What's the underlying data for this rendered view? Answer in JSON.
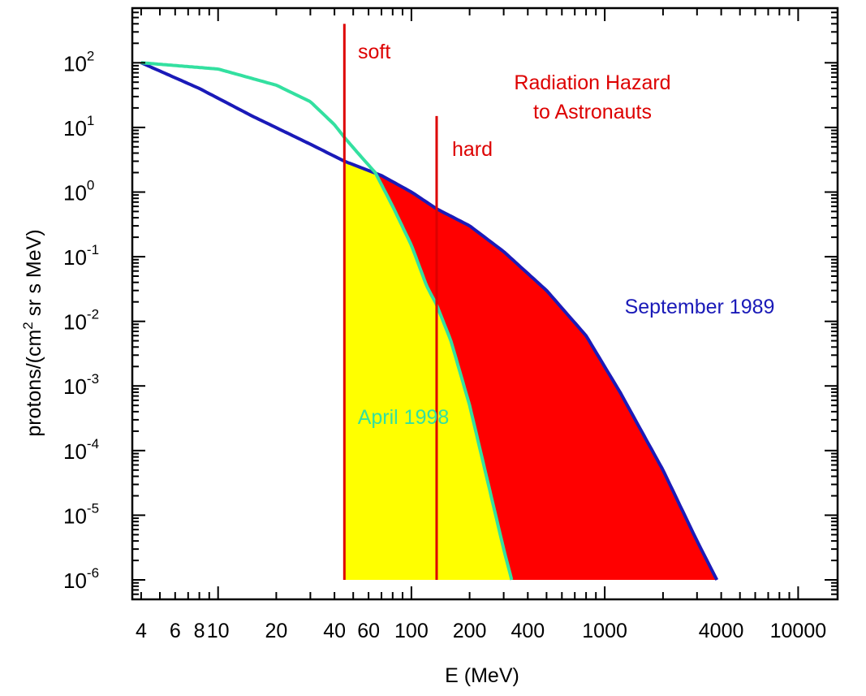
{
  "chart_data": {
    "type": "line",
    "title": "",
    "xlabel": "E (MeV)",
    "ylabel_parts": {
      "before": "protons/(cm",
      "sup": "2",
      "after": " sr s MeV)"
    },
    "x_scale": "log",
    "y_scale": "log",
    "xlim": [
      3.6,
      16000
    ],
    "ylim": [
      5e-07,
      700
    ],
    "x_ticklabels": [
      {
        "value": 4,
        "label": "4"
      },
      {
        "value": 6,
        "label": "6"
      },
      {
        "value": 8,
        "label": "8"
      },
      {
        "value": 10,
        "label": "10"
      },
      {
        "value": 20,
        "label": "20"
      },
      {
        "value": 40,
        "label": "40"
      },
      {
        "value": 60,
        "label": "60"
      },
      {
        "value": 100,
        "label": "100"
      },
      {
        "value": 200,
        "label": "200"
      },
      {
        "value": 400,
        "label": "400"
      },
      {
        "value": 1000,
        "label": "1000"
      },
      {
        "value": 4000,
        "label": "4000"
      },
      {
        "value": 10000,
        "label": "10000"
      }
    ],
    "y_ticklabels": [
      {
        "exponent": 2,
        "base": "10",
        "exp": "2"
      },
      {
        "exponent": 1,
        "base": "10",
        "exp": "1"
      },
      {
        "exponent": 0,
        "base": "10",
        "exp": "0"
      },
      {
        "exponent": -1,
        "base": "10",
        "exp": "-1"
      },
      {
        "exponent": -2,
        "base": "10",
        "exp": "-2"
      },
      {
        "exponent": -3,
        "base": "10",
        "exp": "-3"
      },
      {
        "exponent": -4,
        "base": "10",
        "exp": "-4"
      },
      {
        "exponent": -5,
        "base": "10",
        "exp": "-5"
      },
      {
        "exponent": -6,
        "base": "10",
        "exp": "-6"
      }
    ],
    "series": [
      {
        "name": "September 1989",
        "color": "#1a1ab8",
        "x": [
          4.0,
          8.0,
          15.0,
          30.0,
          45.0,
          70.0,
          100.0,
          135.0,
          200.0,
          300.0,
          500.0,
          800.0,
          1200.0,
          2000.0,
          3000.0,
          3800.0
        ],
        "y": [
          100,
          40,
          15,
          5.5,
          3.0,
          1.8,
          1.0,
          0.55,
          0.3,
          0.12,
          0.03,
          0.006,
          0.0008,
          5e-05,
          4e-06,
          1e-06
        ]
      },
      {
        "name": "April 1998",
        "color": "#33e0a0",
        "x": [
          4.0,
          10.0,
          20.0,
          30.0,
          40.0,
          45.0,
          55.0,
          65.0,
          80.0,
          100.0,
          120.0,
          135.0,
          160.0,
          200.0,
          250.0,
          300.0,
          330.0
        ],
        "y": [
          100,
          80,
          45,
          25,
          11,
          7.0,
          3.5,
          2.0,
          0.6,
          0.15,
          0.035,
          0.018,
          0.005,
          0.0005,
          3e-05,
          3e-06,
          1e-06
        ]
      }
    ],
    "vertical_lines": [
      {
        "label": "soft",
        "x": 45,
        "y_top": 400,
        "color": "#dd0000"
      },
      {
        "label": "hard",
        "x": 135,
        "y_top": 15,
        "color": "#dd0000"
      }
    ],
    "shaded_regions": [
      {
        "name": "soft-hazard",
        "color": "#ffff00"
      },
      {
        "name": "hard-hazard",
        "color": "#ff0000"
      }
    ],
    "annotations": [
      {
        "text": "Radiation Hazard",
        "color": "#dd0000"
      },
      {
        "text": "to Astronauts",
        "color": "#dd0000"
      }
    ],
    "grid": false,
    "legend": "none"
  }
}
